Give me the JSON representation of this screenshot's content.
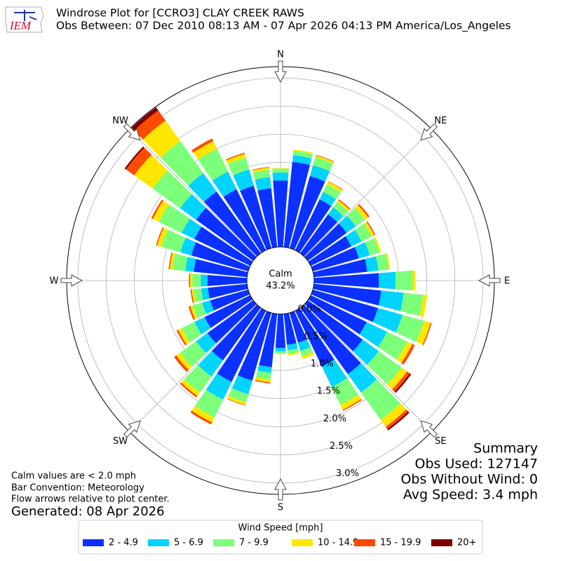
{
  "chart_data": {
    "type": "windrose",
    "title": "Windrose Plot for [CCRO3] CLAY CREEK RAWS",
    "subtitle": "Obs Between: 07 Dec 2010 08:13 AM - 07 Apr 2026 04:13 PM America/Los_Angeles",
    "logo_text": "IEM",
    "x": [
      0,
      10,
      20,
      30,
      40,
      50,
      60,
      70,
      80,
      90,
      100,
      110,
      120,
      130,
      140,
      150,
      160,
      170,
      180,
      190,
      200,
      210,
      220,
      230,
      240,
      250,
      260,
      270,
      280,
      290,
      300,
      310,
      320,
      330,
      340,
      350
    ],
    "xlim": [
      0,
      360
    ],
    "xticks": [
      {
        "value": 0,
        "label": "N"
      },
      {
        "value": 45,
        "label": "NE"
      },
      {
        "value": 90,
        "label": "E"
      },
      {
        "value": 135,
        "label": "SE"
      },
      {
        "value": 180,
        "label": "S"
      },
      {
        "value": 225,
        "label": "SW"
      },
      {
        "value": 270,
        "label": "W"
      },
      {
        "value": 315,
        "label": "NW"
      }
    ],
    "ylim": [
      0,
      3.2
    ],
    "yticks": [
      {
        "value": 0,
        "label": "0.0%"
      },
      {
        "value": 0.5,
        "label": "0.5%"
      },
      {
        "value": 1,
        "label": "1.0%"
      },
      {
        "value": 1.5,
        "label": "1.5%"
      },
      {
        "value": 2,
        "label": "2.0%"
      },
      {
        "value": 2.5,
        "label": "2.5%"
      },
      {
        "value": 3,
        "label": "3.0%"
      }
    ],
    "grid": true,
    "calm": {
      "label": "Calm",
      "value": "43.2%"
    },
    "legend": "lower center",
    "legend_title": "Wind Speed [mph]",
    "series": [
      {
        "name": "2 - 4.9",
        "color": "#0a31ff",
        "values": [
          1.18,
          1.52,
          1.33,
          1.0,
          0.85,
          0.85,
          0.8,
          0.85,
          0.95,
          1.15,
          1.2,
          1.2,
          1.1,
          1.2,
          1.45,
          1.1,
          0.55,
          0.55,
          0.6,
          0.95,
          1.25,
          1.4,
          1.15,
          1.0,
          0.9,
          0.7,
          0.7,
          0.7,
          0.95,
          1.05,
          1.1,
          1.25,
          1.35,
          1.2,
          1.15,
          1.05
        ]
      },
      {
        "name": "5 - 6.9",
        "color": "#00d4ff",
        "values": [
          0.14,
          0.12,
          0.2,
          0.15,
          0.15,
          0.2,
          0.2,
          0.2,
          0.2,
          0.3,
          0.4,
          0.45,
          0.4,
          0.35,
          0.4,
          0.4,
          0.15,
          0.1,
          0.06,
          0.1,
          0.25,
          0.35,
          0.35,
          0.25,
          0.2,
          0.15,
          0.12,
          0.12,
          0.15,
          0.2,
          0.25,
          0.35,
          0.4,
          0.35,
          0.3,
          0.2
        ]
      },
      {
        "name": "7 - 9.9",
        "color": "#7cff79",
        "values": [
          0.07,
          0.08,
          0.15,
          0.15,
          0.12,
          0.2,
          0.2,
          0.18,
          0.18,
          0.3,
          0.35,
          0.4,
          0.4,
          0.5,
          0.6,
          0.35,
          0.1,
          0.06,
          0.04,
          0.12,
          0.15,
          0.35,
          0.35,
          0.35,
          0.25,
          0.17,
          0.13,
          0.15,
          0.23,
          0.35,
          0.45,
          0.6,
          0.7,
          0.45,
          0.22,
          0.13
        ]
      },
      {
        "name": "10 - 14.9",
        "color": "#ffe600",
        "values": [
          0.01,
          0.02,
          0.03,
          0.05,
          0.04,
          0.07,
          0.05,
          0.03,
          0.03,
          0.05,
          0.07,
          0.12,
          0.1,
          0.12,
          0.15,
          0.1,
          0.05,
          0.03,
          0.01,
          0.05,
          0.05,
          0.1,
          0.08,
          0.08,
          0.07,
          0.05,
          0.04,
          0.04,
          0.05,
          0.08,
          0.12,
          0.4,
          0.45,
          0.15,
          0.07,
          0.04
        ]
      },
      {
        "name": "15 - 19.9",
        "color": "#ff4a00",
        "values": [
          0,
          0,
          0.01,
          0.01,
          0.02,
          0.03,
          0.02,
          0,
          0,
          0,
          0,
          0.02,
          0.05,
          0.06,
          0.05,
          0.02,
          0,
          0,
          0,
          0.02,
          0.01,
          0.04,
          0.03,
          0.05,
          0.03,
          0.03,
          0.02,
          0.02,
          0.02,
          0.02,
          0.03,
          0.18,
          0.22,
          0.05,
          0.02,
          0.01
        ]
      },
      {
        "name": "20+",
        "color": "#7f0000",
        "values": [
          0,
          0,
          0,
          0,
          0,
          0,
          0,
          0,
          0,
          0,
          0,
          0,
          0,
          0.03,
          0.03,
          0,
          0,
          0,
          0,
          0,
          0,
          0,
          0,
          0,
          0,
          0,
          0,
          0,
          0,
          0,
          0,
          0.03,
          0.07,
          0,
          0,
          0
        ]
      }
    ],
    "notes": [
      "Calm values are < 2.0 mph",
      "Bar Convention: Meteorology",
      "Flow arrows relative to plot center."
    ],
    "generated": "Generated: 08 Apr 2026",
    "summary": [
      "Summary",
      "Obs Used: 127147",
      "Obs Without Wind: 0",
      "Avg Speed: 3.4 mph"
    ]
  }
}
